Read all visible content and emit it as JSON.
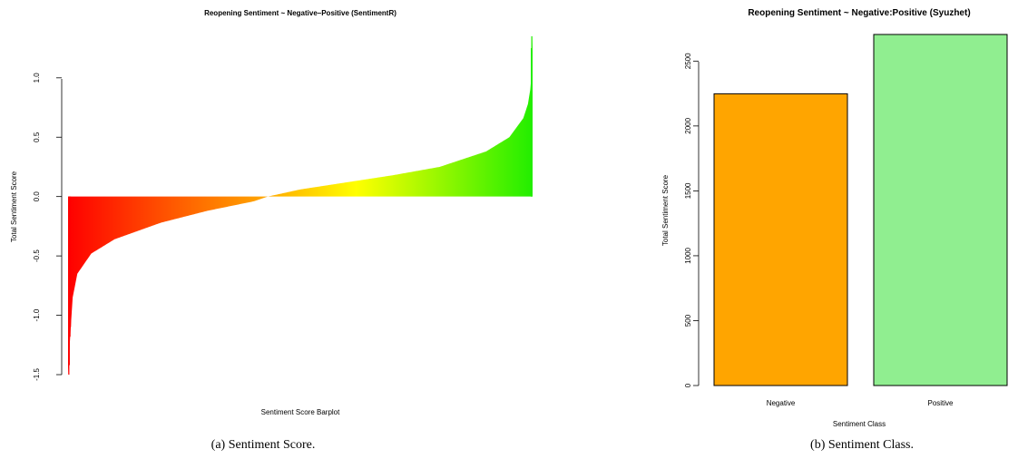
{
  "chart_data": [
    {
      "type": "bar",
      "title": "Reopening Sentiment ~ Negative–Positive (SentimentR)",
      "xlabel": "Sentiment Score Barplot",
      "ylabel": "Total Sentiment Score",
      "ylim": [
        -1.5,
        1.35
      ],
      "yticks": [
        "-1.5",
        "-1.0",
        "-0.5",
        "0.0",
        "0.5",
        "1.0"
      ],
      "grid": false,
      "n_bars": 4950,
      "sorted_ascending": true,
      "profile_quantiles": [
        0,
        0.005,
        0.01,
        0.02,
        0.05,
        0.1,
        0.2,
        0.3,
        0.4,
        0.43,
        0.5,
        0.6,
        0.7,
        0.8,
        0.9,
        0.95,
        0.98,
        0.99,
        0.997,
        1
      ],
      "profile_values": [
        -1.5,
        -1.15,
        -0.85,
        -0.65,
        -0.48,
        -0.36,
        -0.22,
        -0.12,
        -0.04,
        0.0,
        0.06,
        0.12,
        0.18,
        0.25,
        0.38,
        0.5,
        0.66,
        0.78,
        0.95,
        1.35
      ],
      "color_scale": [
        "#ff0000",
        "#ffa500",
        "#ffff00",
        "#22ee00"
      ],
      "caption": "(a) Sentiment Score."
    },
    {
      "type": "bar",
      "title": "Reopening Sentiment ~ Negative:Positive (Syuzhet)",
      "xlabel": "Sentiment Class",
      "ylabel": "Total Sentiment Score",
      "categories": [
        "Negative",
        "Positive"
      ],
      "values": [
        2248,
        2705
      ],
      "colors": [
        "#ffa500",
        "#90ee90"
      ],
      "ylim": [
        0,
        2705
      ],
      "yticks": [
        "0",
        "500",
        "1000",
        "1500",
        "2000",
        "2500"
      ],
      "grid": false,
      "caption": "(b) Sentiment Class."
    }
  ]
}
